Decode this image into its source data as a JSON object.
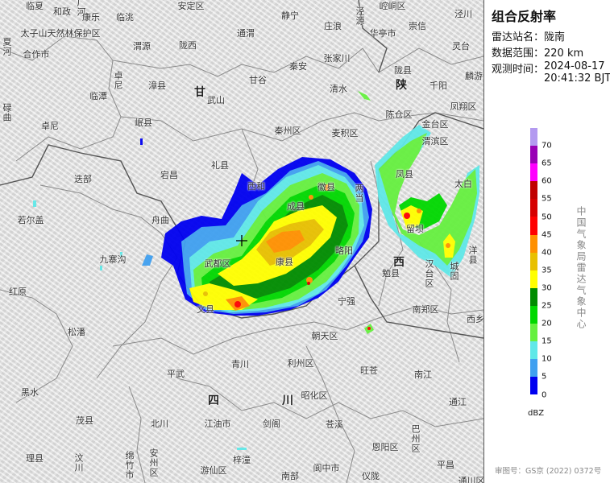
{
  "panel": {
    "title": "组合反射率",
    "station_label": "雷达站名：",
    "station": "陇南",
    "range_label": "数据范围：",
    "range": "220 km",
    "time_label": "观测时间：",
    "date": "2024-08-17",
    "time": "20:41:32 BJT",
    "legend": {
      "unit": "dBZ",
      "ticks": [
        "70",
        "65",
        "60",
        "55",
        "50",
        "45",
        "40",
        "35",
        "30",
        "25",
        "20",
        "15",
        "10",
        "5",
        "0"
      ],
      "colors": [
        "#b39af0",
        "#9900b5",
        "#ff00ff",
        "#c00000",
        "#d60000",
        "#ff0000",
        "#ff9000",
        "#e8c000",
        "#ffff00",
        "#008c00",
        "#00d800",
        "#66f040",
        "#60e8e8",
        "#40a0f0",
        "#0000f0"
      ]
    },
    "organization": "中国气象局雷达气象中心",
    "approval": "审图号：GS京 (2022) 0372号"
  },
  "map": {
    "radar_site_icon": "crosshair-icon",
    "provinces": [
      "甘",
      "陕",
      "西",
      "四",
      "川"
    ],
    "places": [
      "临夏",
      "和政",
      "广河",
      "康乐",
      "临洮",
      "安定区",
      "太子山天然林保护区",
      "合作市",
      "夏河",
      "渭源",
      "陇西",
      "卓尼",
      "漳县",
      "临潭",
      "武山",
      "碌曲",
      "卓尼",
      "岷县",
      "静宁",
      "泾源",
      "崆峒区",
      "泾川",
      "庄浪",
      "华亭市",
      "崇信",
      "灵台",
      "张家川",
      "秦安",
      "甘谷",
      "通渭",
      "陇县",
      "千阳",
      "麟游",
      "清水",
      "凤翔区",
      "陈仓区",
      "秦州区",
      "麦积区",
      "金台区",
      "渭滨区",
      "礼县",
      "迭部",
      "宕昌",
      "若尔盖",
      "舟曲",
      "九寨沟",
      "红原",
      "文县",
      "武都区",
      "西和",
      "徽县",
      "两当",
      "成县",
      "康县",
      "略阳",
      "宁强",
      "勉县",
      "汉台区",
      "城固",
      "洋县",
      "留坝",
      "凤县",
      "太白",
      "南郑区",
      "西乡",
      "松潘",
      "平武",
      "青川",
      "黑水",
      "茂县",
      "北川",
      "江油市",
      "理县",
      "汶川",
      "绵竹市",
      "安州区",
      "游仙区",
      "梓潼",
      "朝天区",
      "利州区",
      "旺苍",
      "南江",
      "通江",
      "昭化区",
      "剑阁",
      "苍溪",
      "巴州区",
      "恩阳区",
      "平昌",
      "阆中市",
      "南部",
      "仪陇",
      "通川区"
    ]
  }
}
